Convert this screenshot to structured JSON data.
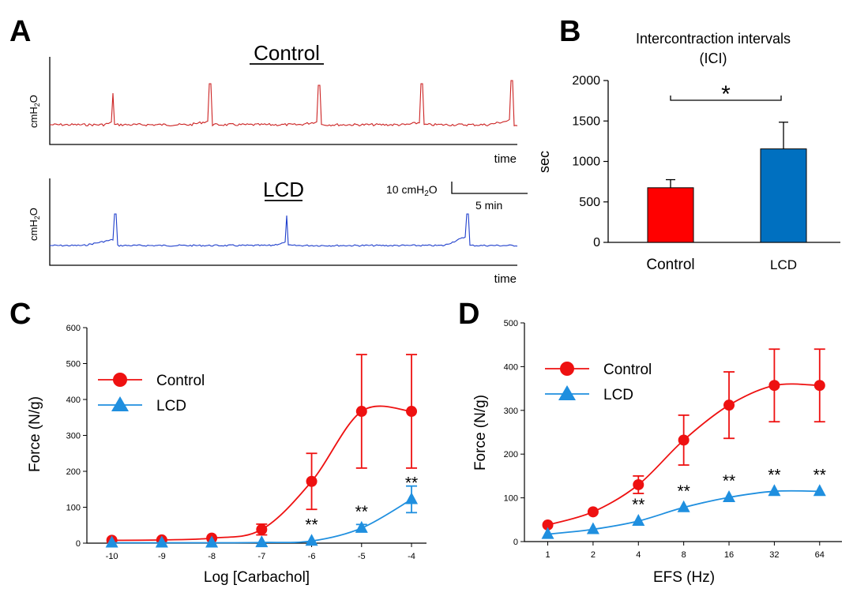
{
  "panels": {
    "A": "A",
    "B": "B",
    "C": "C",
    "D": "D"
  },
  "panel_a": {
    "control_label": "Control",
    "lcd_label": "LCD",
    "ylabel_main": "cmH",
    "ylabel_sub": "2",
    "ylabel_end": "O",
    "xlabel": "time",
    "scalebar_y_main": "10 cmH",
    "scalebar_y_sub": "2",
    "scalebar_y_end": "O",
    "scalebar_x": "5 min",
    "colors": {
      "control": "#cc2222",
      "lcd": "#1f3fcc"
    }
  },
  "chart_data": [
    {
      "panel": "B",
      "type": "bar",
      "title_line1": "Intercontraction intervals",
      "title_line2": "(ICI)",
      "categories": [
        "Control",
        "LCD"
      ],
      "values": [
        675,
        1155
      ],
      "errors": [
        100,
        330
      ],
      "colors": [
        "#ff0000",
        "#0070c0"
      ],
      "ylabel": "sec",
      "ylim": [
        0,
        2000
      ],
      "yticks": [
        "0",
        "500",
        "1000",
        "1500",
        "2000"
      ],
      "significance": "*"
    },
    {
      "panel": "C",
      "type": "line",
      "xlabel": "Log [Carbachol]",
      "ylabel": "Force (N/g)",
      "xlim": [
        -10.5,
        -3.7
      ],
      "ylim": [
        0,
        600
      ],
      "xticks": [
        "-10",
        "-9",
        "-8",
        "-7",
        "-6",
        "-5",
        "-4"
      ],
      "yticks": [
        "0",
        "100",
        "200",
        "300",
        "400",
        "500",
        "600"
      ],
      "legend_position": "top-left",
      "series": [
        {
          "name": "Control",
          "color": "#ee1111",
          "marker": "circle",
          "x": [
            -10,
            -9,
            -8,
            -7,
            -6,
            -5,
            -4
          ],
          "y": [
            8,
            9,
            14,
            38,
            172,
            367,
            367
          ],
          "err": [
            0,
            0,
            0,
            15,
            78,
            158,
            158
          ]
        },
        {
          "name": "LCD",
          "color": "#1f8fdf",
          "marker": "triangle",
          "x": [
            -10,
            -9,
            -8,
            -7,
            -6,
            -5,
            -4
          ],
          "y": [
            1,
            1,
            1,
            2,
            6,
            42,
            122
          ],
          "err": [
            0,
            0,
            0,
            0,
            0,
            10,
            37
          ]
        }
      ],
      "annotations": [
        {
          "x": -6,
          "y": 6,
          "text": "**"
        },
        {
          "x": -5,
          "y": 42,
          "text": "**"
        },
        {
          "x": -4,
          "y": 122,
          "text": "**"
        }
      ]
    },
    {
      "panel": "D",
      "type": "line",
      "xlabel": "EFS (Hz)",
      "ylabel": "Force (N/g)",
      "xscale": "log2",
      "xlim": [
        0.7,
        90
      ],
      "ylim": [
        0,
        500
      ],
      "xticks": [
        "1",
        "2",
        "4",
        "8",
        "16",
        "32",
        "64"
      ],
      "yticks": [
        "0",
        "100",
        "200",
        "300",
        "400",
        "500"
      ],
      "legend_position": "top-left",
      "series": [
        {
          "name": "Control",
          "color": "#ee1111",
          "marker": "circle",
          "x": [
            1,
            2,
            4,
            8,
            16,
            32,
            64
          ],
          "y": [
            38,
            68,
            130,
            232,
            312,
            357,
            357
          ],
          "err": [
            0,
            0,
            20,
            57,
            76,
            83,
            83
          ]
        },
        {
          "name": "LCD",
          "color": "#1f8fdf",
          "marker": "triangle",
          "x": [
            1,
            2,
            4,
            8,
            16,
            32,
            64
          ],
          "y": [
            17,
            28,
            47,
            78,
            101,
            115,
            115
          ],
          "err": [
            0,
            0,
            0,
            0,
            0,
            0,
            0
          ]
        }
      ],
      "annotations": [
        {
          "x": 4,
          "y": 47,
          "text": "**"
        },
        {
          "x": 8,
          "y": 78,
          "text": "**"
        },
        {
          "x": 16,
          "y": 101,
          "text": "**"
        },
        {
          "x": 32,
          "y": 115,
          "text": "**"
        },
        {
          "x": 64,
          "y": 115,
          "text": "**"
        }
      ]
    }
  ]
}
